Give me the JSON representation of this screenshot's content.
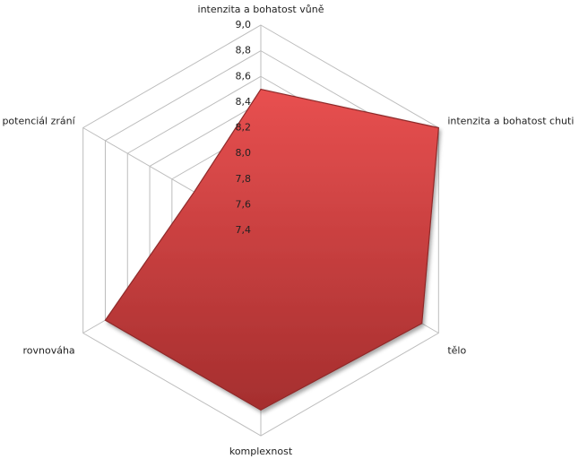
{
  "chart_data": {
    "type": "radar",
    "categories": [
      "intenzita a bohatost vůně",
      "intenzita a bohatost chuti",
      "tělo",
      "komplexnost",
      "rovnováha",
      "potenciál zrání"
    ],
    "series": [
      {
        "color": "#d84343",
        "values": [
          8.5,
          9.0,
          8.85,
          8.8,
          8.8,
          8.0
        ]
      }
    ],
    "ylim": [
      7.4,
      9.0
    ],
    "yticks": [
      {
        "value": 7.4,
        "label": "7,4"
      },
      {
        "value": 7.6,
        "label": "7,6"
      },
      {
        "value": 7.8,
        "label": "7,8"
      },
      {
        "value": 8.0,
        "label": "8,0"
      },
      {
        "value": 8.2,
        "label": "8,2"
      },
      {
        "value": 8.4,
        "label": "8,4"
      },
      {
        "value": 8.6,
        "label": "8,6"
      },
      {
        "value": 8.8,
        "label": "8,8"
      },
      {
        "value": 9.0,
        "label": "9,0"
      }
    ],
    "grid": true
  }
}
